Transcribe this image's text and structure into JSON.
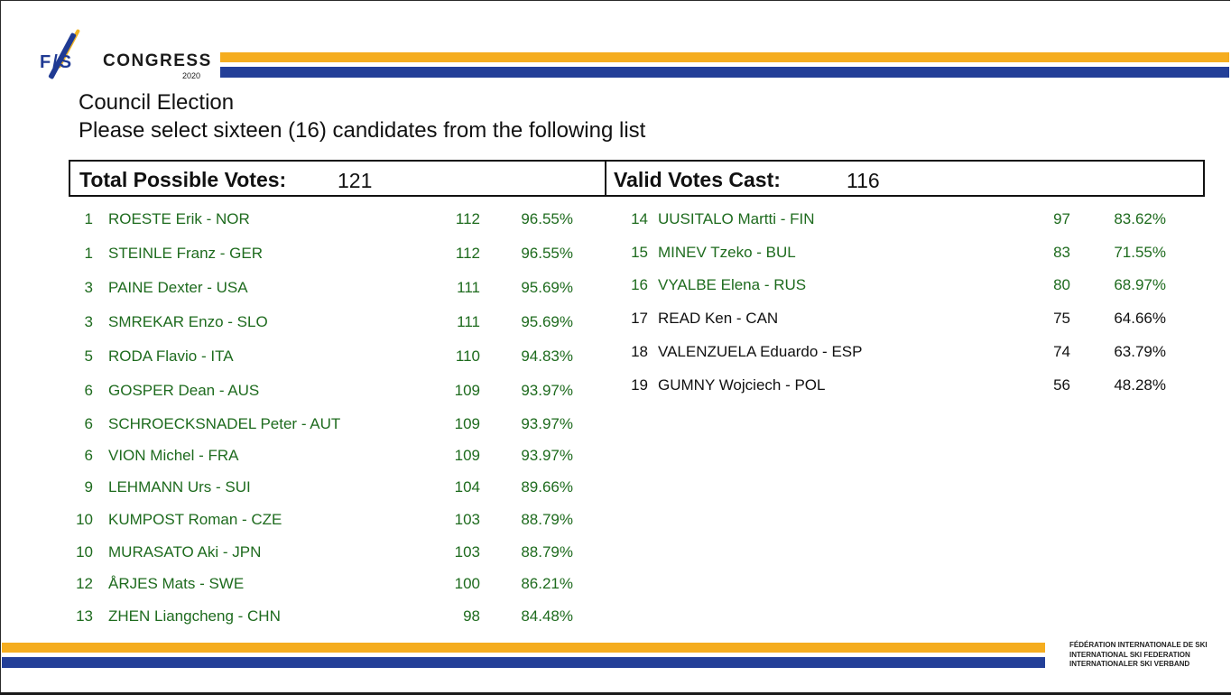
{
  "header": {
    "logo_fis": "F/S",
    "logo_congress": "CONGRESS",
    "logo_year": "2020"
  },
  "titles": {
    "line1": "Council Election",
    "line2": "Please select sixteen (16) candidates from the following list"
  },
  "totals": {
    "possible_label": "Total Possible Votes:",
    "possible_value": "121",
    "cast_label": "Valid Votes Cast:",
    "cast_value": "116"
  },
  "candidates_left": [
    {
      "rank": "1",
      "name": "ROESTE Erik - NOR",
      "votes": "112",
      "pct": "96.55%",
      "elected": true
    },
    {
      "rank": "1",
      "name": "STEINLE Franz - GER",
      "votes": "112",
      "pct": "96.55%",
      "elected": true
    },
    {
      "rank": "3",
      "name": "PAINE Dexter - USA",
      "votes": "111",
      "pct": "95.69%",
      "elected": true
    },
    {
      "rank": "3",
      "name": "SMREKAR Enzo - SLO",
      "votes": "111",
      "pct": "95.69%",
      "elected": true
    },
    {
      "rank": "5",
      "name": "RODA Flavio - ITA",
      "votes": "110",
      "pct": "94.83%",
      "elected": true
    },
    {
      "rank": "6",
      "name": "GOSPER Dean - AUS",
      "votes": "109",
      "pct": "93.97%",
      "elected": true
    },
    {
      "rank": "6",
      "name": "SCHROECKSNADEL Peter - AUT",
      "votes": "109",
      "pct": "93.97%",
      "elected": true
    },
    {
      "rank": "6",
      "name": "VION Michel - FRA",
      "votes": "109",
      "pct": "93.97%",
      "elected": true
    },
    {
      "rank": "9",
      "name": "LEHMANN Urs - SUI",
      "votes": "104",
      "pct": "89.66%",
      "elected": true
    },
    {
      "rank": "10",
      "name": "KUMPOST Roman - CZE",
      "votes": "103",
      "pct": "88.79%",
      "elected": true
    },
    {
      "rank": "10",
      "name": "MURASATO Aki - JPN",
      "votes": "103",
      "pct": "88.79%",
      "elected": true
    },
    {
      "rank": "12",
      "name": "ÅRJES Mats - SWE",
      "votes": "100",
      "pct": "86.21%",
      "elected": true
    },
    {
      "rank": "13",
      "name": "ZHEN Liangcheng - CHN",
      "votes": "98",
      "pct": "84.48%",
      "elected": true
    }
  ],
  "candidates_right": [
    {
      "rank": "14",
      "name": "UUSITALO Martti - FIN",
      "votes": "97",
      "pct": "83.62%",
      "elected": true
    },
    {
      "rank": "15",
      "name": "MINEV Tzeko - BUL",
      "votes": "83",
      "pct": "71.55%",
      "elected": true
    },
    {
      "rank": "16",
      "name": "VYALBE Elena - RUS",
      "votes": "80",
      "pct": "68.97%",
      "elected": true
    },
    {
      "rank": "17",
      "name": "READ Ken - CAN",
      "votes": "75",
      "pct": "64.66%",
      "elected": false
    },
    {
      "rank": "18",
      "name": "VALENZUELA Eduardo - ESP",
      "votes": "74",
      "pct": "63.79%",
      "elected": false
    },
    {
      "rank": "19",
      "name": "GUMNY Wojciech - POL",
      "votes": "56",
      "pct": "48.28%",
      "elected": false
    }
  ],
  "footer": {
    "line1": "FÉDÉRATION INTERNATIONALE DE SKI",
    "line2": "INTERNATIONAL SKI FEDERATION",
    "line3": "INTERNATIONALER SKI VERBAND"
  },
  "colors": {
    "elected": "#1e6b1e",
    "not_elected": "#111111",
    "brand_yellow": "#f5ad1f",
    "brand_blue": "#233f98"
  }
}
